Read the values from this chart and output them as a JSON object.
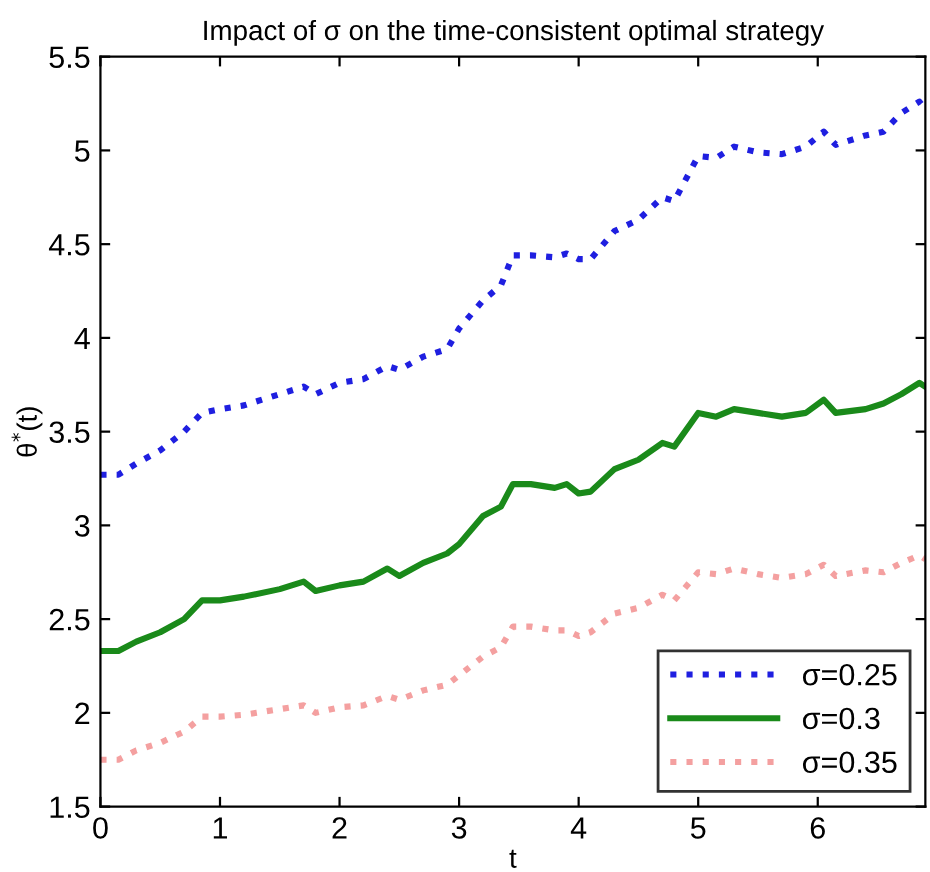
{
  "chart_data": {
    "type": "line",
    "title": "Impact of σ on the time-consistent optimal strategy",
    "xlabel": "t",
    "ylabel": "θ$^{*}$(t)",
    "x": [
      0,
      0.15,
      0.3,
      0.5,
      0.7,
      0.85,
      1.0,
      1.2,
      1.5,
      1.7,
      1.8,
      2.0,
      2.2,
      2.4,
      2.5,
      2.7,
      2.9,
      3.0,
      3.2,
      3.35,
      3.45,
      3.6,
      3.8,
      3.9,
      4.0,
      4.1,
      4.3,
      4.5,
      4.7,
      4.8,
      5.0,
      5.15,
      5.3,
      5.5,
      5.7,
      5.9,
      6.05,
      6.15,
      6.4,
      6.55,
      6.7,
      6.85,
      6.9
    ],
    "series": [
      {
        "name": "σ=0.25",
        "color": "#1f1fe0",
        "line_style": "dotted",
        "values": [
          3.27,
          3.27,
          3.33,
          3.4,
          3.5,
          3.6,
          3.62,
          3.64,
          3.7,
          3.74,
          3.7,
          3.76,
          3.78,
          3.85,
          3.83,
          3.9,
          3.94,
          4.05,
          4.2,
          4.28,
          4.44,
          4.44,
          4.43,
          4.45,
          4.42,
          4.42,
          4.57,
          4.63,
          4.75,
          4.73,
          4.97,
          4.96,
          5.02,
          4.99,
          4.98,
          5.02,
          5.1,
          5.03,
          5.08,
          5.1,
          5.2,
          5.26,
          5.22
        ]
      },
      {
        "name": "σ=0.3",
        "color": "#1a8a1a",
        "line_style": "solid",
        "values": [
          2.33,
          2.33,
          2.38,
          2.43,
          2.5,
          2.6,
          2.6,
          2.62,
          2.66,
          2.7,
          2.65,
          2.68,
          2.7,
          2.77,
          2.73,
          2.8,
          2.85,
          2.9,
          3.05,
          3.1,
          3.22,
          3.22,
          3.2,
          3.22,
          3.17,
          3.18,
          3.3,
          3.35,
          3.44,
          3.42,
          3.6,
          3.58,
          3.62,
          3.6,
          3.58,
          3.6,
          3.67,
          3.6,
          3.62,
          3.65,
          3.7,
          3.76,
          3.74
        ]
      },
      {
        "name": "σ=0.35",
        "color": "#f4a0a0",
        "line_style": "dotted",
        "values": [
          1.75,
          1.75,
          1.8,
          1.84,
          1.9,
          1.98,
          1.98,
          1.99,
          2.02,
          2.04,
          2.0,
          2.03,
          2.04,
          2.09,
          2.07,
          2.12,
          2.15,
          2.2,
          2.3,
          2.35,
          2.46,
          2.46,
          2.44,
          2.44,
          2.41,
          2.43,
          2.53,
          2.56,
          2.63,
          2.6,
          2.75,
          2.74,
          2.77,
          2.74,
          2.72,
          2.74,
          2.79,
          2.73,
          2.76,
          2.75,
          2.8,
          2.84,
          2.82
        ]
      }
    ],
    "xlim": [
      0,
      6.9
    ],
    "xticks": [
      0,
      1,
      2,
      3,
      4,
      5,
      6
    ],
    "ylim": [
      1.5,
      5.5
    ],
    "yticks": [
      1.5,
      2,
      2.5,
      3,
      3.5,
      4,
      4.5,
      5,
      5.5
    ],
    "grid": false,
    "legend": "bottom right"
  }
}
